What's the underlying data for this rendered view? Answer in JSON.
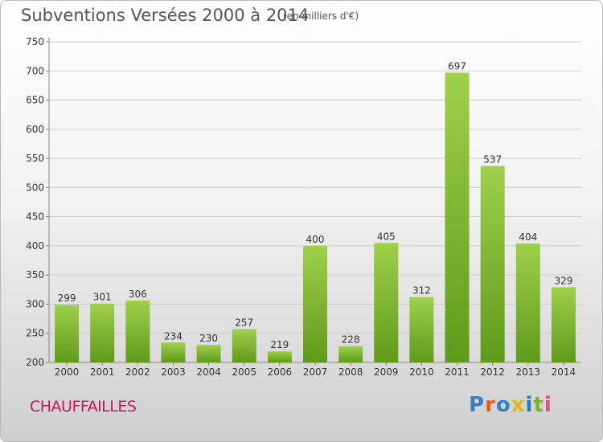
{
  "header": {
    "title": "Subventions Versées 2000 à 2014",
    "subtitle": "(en milliers d'€)"
  },
  "footer": {
    "city": "CHAUFFAILLES",
    "logo_text": "Proxiti",
    "logo_colors": [
      "#3a7fc1",
      "#e85a1a",
      "#3a7fc1",
      "#e8b21a",
      "#1a7fc1",
      "#7ab52a",
      "#e84a7a"
    ]
  },
  "colors": {
    "bar_top": "#9fd04a",
    "bar_bottom": "#5f9a1a",
    "grid": "#cccccc",
    "axis_text": "#333333"
  },
  "chart_data": {
    "type": "bar",
    "categories": [
      "2000",
      "2001",
      "2002",
      "2003",
      "2004",
      "2005",
      "2006",
      "2007",
      "2008",
      "2009",
      "2010",
      "2011",
      "2012",
      "2013",
      "2014"
    ],
    "values": [
      299,
      301,
      306,
      234,
      230,
      257,
      219,
      400,
      228,
      405,
      312,
      697,
      537,
      404,
      329
    ],
    "ylim": [
      200,
      750
    ],
    "yticks": [
      200,
      250,
      300,
      350,
      400,
      450,
      500,
      550,
      600,
      650,
      700,
      750
    ],
    "grid": true,
    "data_labels": true
  }
}
